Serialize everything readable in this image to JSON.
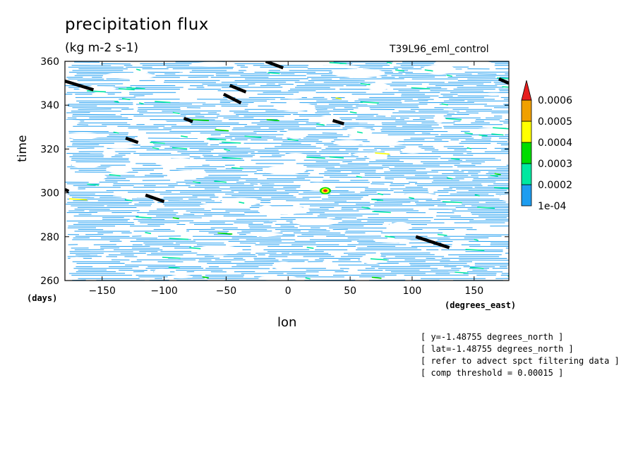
{
  "chart_data": {
    "type": "heatmap",
    "title": "precipitation flux",
    "subtitle": "(kg m-2 s-1)",
    "experiment": "T39L96_eml_control",
    "xlabel": "lon",
    "ylabel": "time",
    "x_unit": "(degrees_east)",
    "y_unit": "(days)",
    "xlim": [
      -180,
      178
    ],
    "ylim": [
      260,
      360
    ],
    "x_ticks": [
      -150,
      -100,
      -50,
      0,
      50,
      100,
      150
    ],
    "y_ticks": [
      260,
      280,
      300,
      320,
      340,
      360
    ],
    "colorbar": {
      "levels": [
        "1e-04",
        "0.0002",
        "0.0003",
        "0.0004",
        "0.0005",
        "0.0006"
      ],
      "colors": [
        "#1e9df0",
        "#00e8a0",
        "#00dc00",
        "#ffff00",
        "#f0a000",
        "#e61e1e"
      ],
      "position": "right"
    },
    "threshold_tracks": [
      {
        "lon": [
          -180,
          -157
        ],
        "time": [
          351,
          347
        ]
      },
      {
        "lon": [
          -180,
          -177
        ],
        "time": [
          301.5,
          300.7
        ]
      },
      {
        "lon": [
          -47,
          -34
        ],
        "time": [
          349,
          346
        ]
      },
      {
        "lon": [
          -52,
          -38
        ],
        "time": [
          345,
          341
        ]
      },
      {
        "lon": [
          -18,
          -4
        ],
        "time": [
          360,
          357
        ]
      },
      {
        "lon": [
          -84,
          -77
        ],
        "time": [
          334,
          332.5
        ]
      },
      {
        "lon": [
          -131,
          -121
        ],
        "time": [
          325,
          323
        ]
      },
      {
        "lon": [
          -115,
          -100
        ],
        "time": [
          299,
          296
        ]
      },
      {
        "lon": [
          36,
          45
        ],
        "time": [
          333,
          331.5
        ]
      },
      {
        "lon": [
          103,
          130
        ],
        "time": [
          280,
          275
        ]
      },
      {
        "lon": [
          170,
          178
        ],
        "time": [
          352,
          350
        ]
      }
    ],
    "hotspots": [
      {
        "lon": 30,
        "time": 301,
        "value": 0.0006
      }
    ],
    "grid": false
  },
  "notes": [
    "[ y=-1.48755 degrees_north ]",
    "[ lat=-1.48755 degrees_north ]",
    "[ refer to advect spct filtering data ]",
    "[ comp threshold = 0.00015 ]"
  ]
}
